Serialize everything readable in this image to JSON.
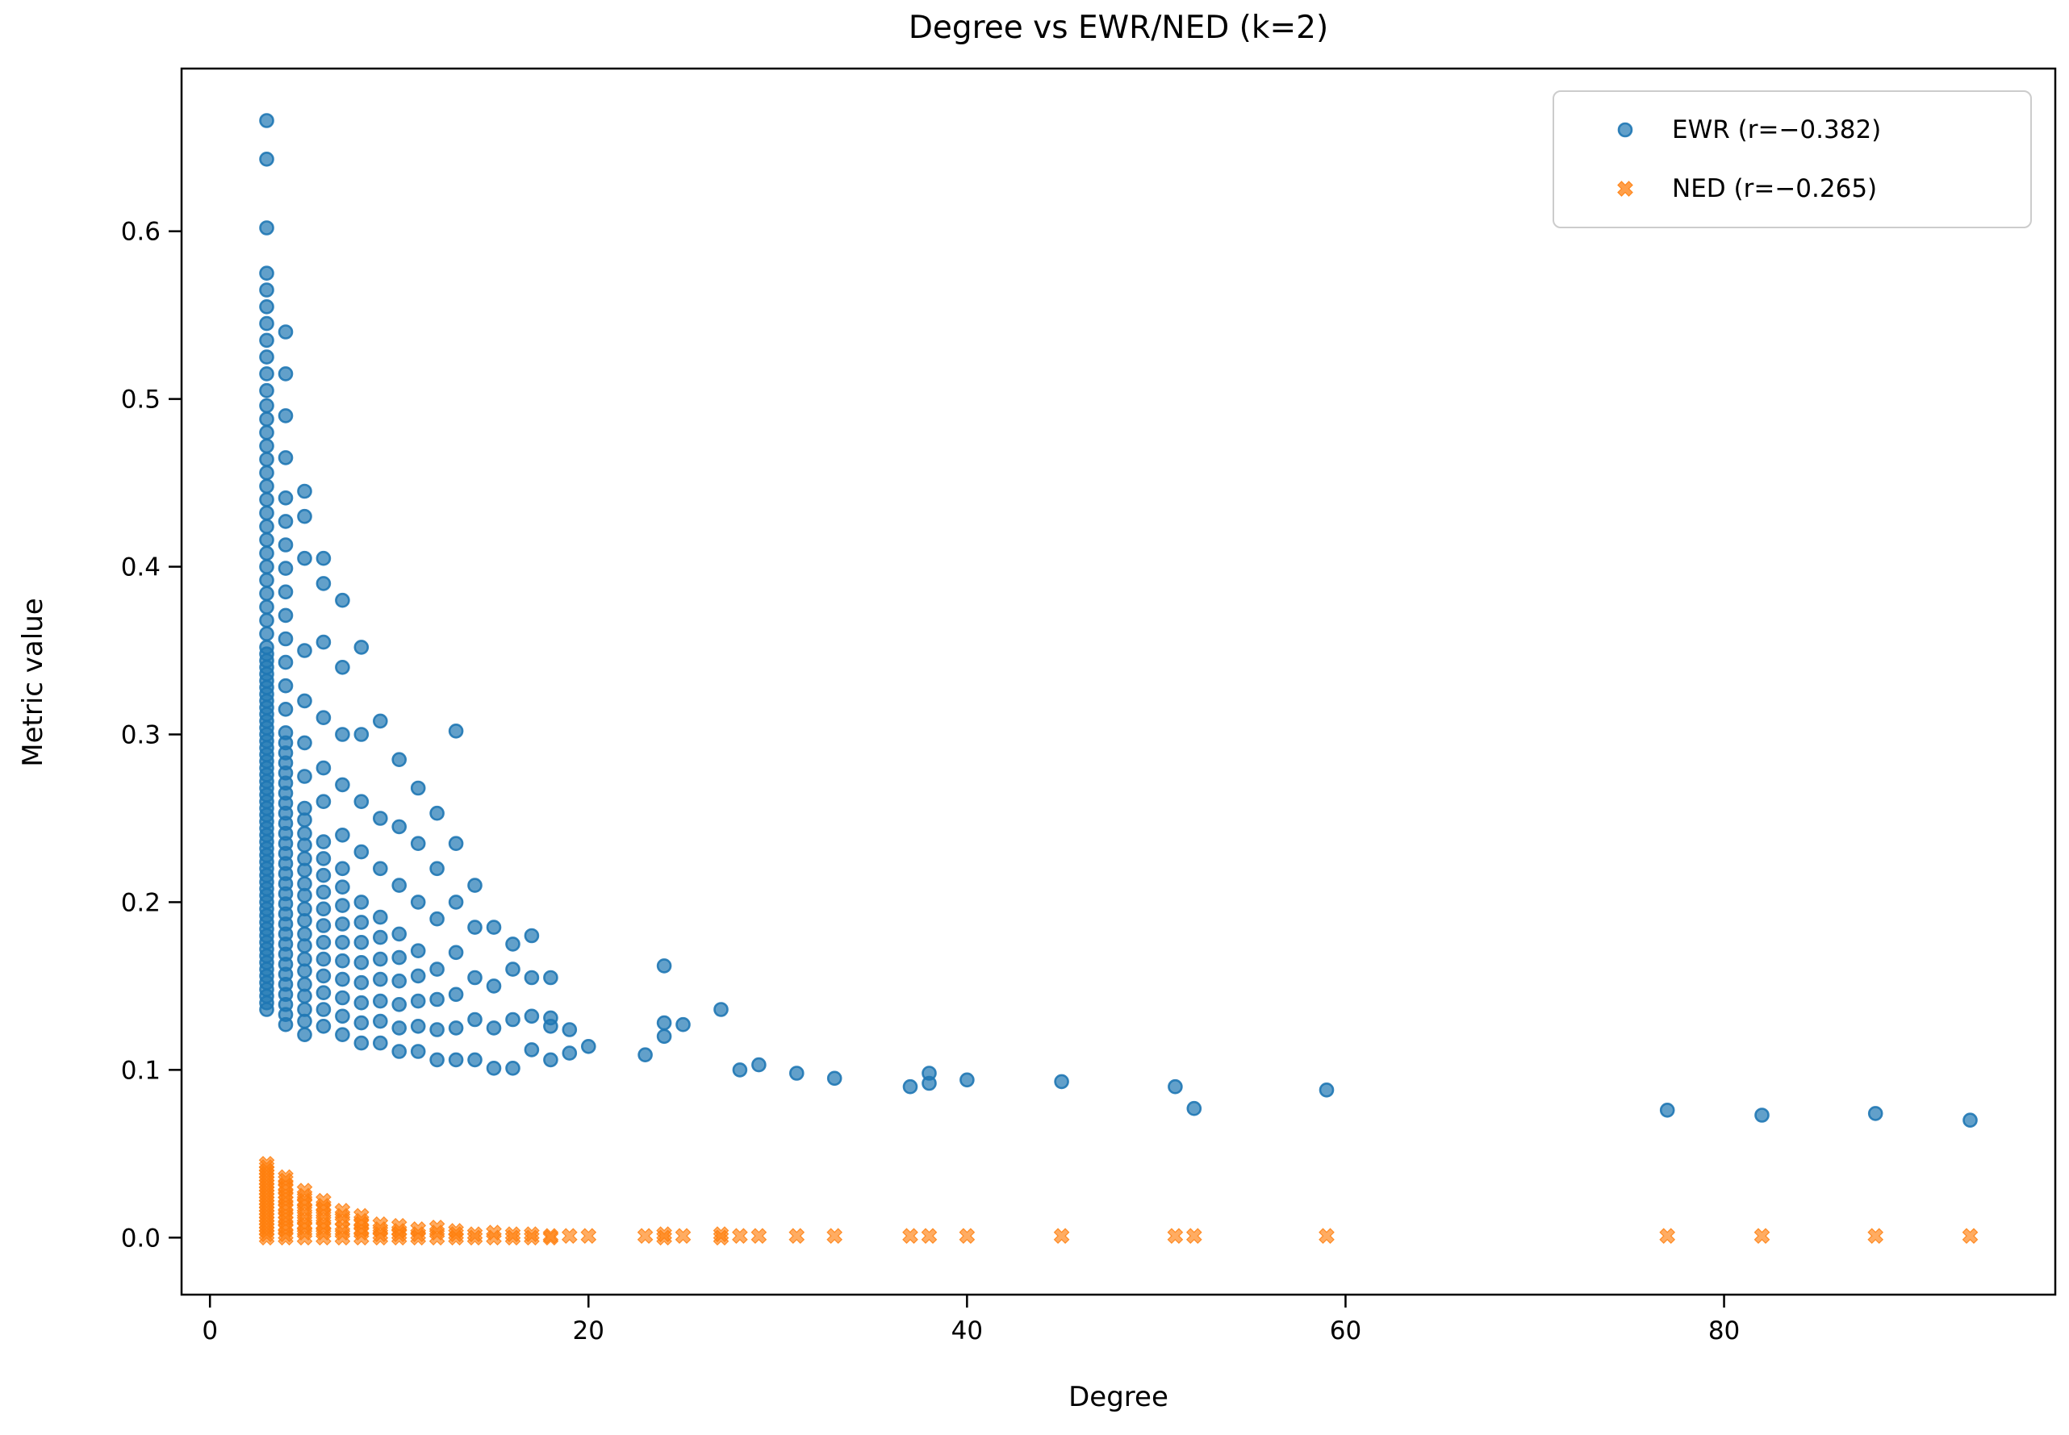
{
  "figure": {
    "title": "Degree vs EWR/NED (k=2)",
    "xlabel": "Degree",
    "ylabel": "Metric value"
  },
  "legend": {
    "items": [
      {
        "label": "EWR (r=−0.382)",
        "marker": "circle",
        "color": "#1f77b4"
      },
      {
        "label": "NED (r=−0.265)",
        "marker": "X",
        "color": "#ff7f0e"
      }
    ]
  },
  "chart_data": {
    "type": "scatter",
    "title": "Degree vs EWR/NED (k=2)",
    "xlabel": "Degree",
    "ylabel": "Metric value",
    "xlim": [
      -1.5,
      97.5
    ],
    "ylim": [
      -0.034,
      0.697
    ],
    "xticks": [
      0,
      20,
      40,
      60,
      80
    ],
    "yticks": [
      0.0,
      0.1,
      0.2,
      0.3,
      0.4,
      0.5,
      0.6
    ],
    "grid": false,
    "legend_position": "upper right",
    "series": [
      {
        "name": "EWR (r=−0.382)",
        "marker": "circle",
        "color": "#1f77b4",
        "alpha": 0.7,
        "columns": [
          {
            "x": 3,
            "ys": [
              0.136,
              0.14,
              0.144,
              0.148,
              0.152,
              0.156,
              0.16,
              0.164,
              0.168,
              0.172,
              0.176,
              0.18,
              0.184,
              0.188,
              0.192,
              0.196,
              0.2,
              0.204,
              0.208,
              0.212,
              0.216,
              0.22,
              0.224,
              0.228,
              0.232,
              0.236,
              0.24,
              0.244,
              0.248,
              0.252,
              0.256,
              0.26,
              0.264,
              0.268,
              0.272,
              0.276,
              0.28,
              0.284,
              0.288,
              0.292,
              0.296,
              0.3,
              0.304,
              0.308,
              0.312,
              0.316,
              0.32,
              0.324,
              0.328,
              0.332,
              0.336,
              0.34,
              0.344,
              0.348,
              0.352,
              0.36,
              0.368,
              0.376,
              0.384,
              0.392,
              0.4,
              0.408,
              0.416,
              0.424,
              0.432,
              0.44,
              0.448,
              0.456,
              0.464,
              0.472,
              0.48,
              0.488,
              0.496,
              0.505,
              0.515,
              0.525,
              0.535,
              0.545,
              0.555,
              0.565,
              0.575,
              0.602,
              0.643,
              0.666
            ]
          },
          {
            "x": 4,
            "ys": [
              0.127,
              0.133,
              0.139,
              0.145,
              0.151,
              0.157,
              0.163,
              0.169,
              0.175,
              0.181,
              0.187,
              0.193,
              0.199,
              0.205,
              0.211,
              0.217,
              0.223,
              0.229,
              0.235,
              0.241,
              0.247,
              0.253,
              0.259,
              0.265,
              0.271,
              0.277,
              0.283,
              0.289,
              0.295,
              0.301,
              0.315,
              0.329,
              0.343,
              0.357,
              0.371,
              0.385,
              0.399,
              0.413,
              0.427,
              0.441,
              0.465,
              0.49,
              0.515,
              0.54
            ]
          },
          {
            "x": 5,
            "ys": [
              0.121,
              0.129,
              0.136,
              0.144,
              0.151,
              0.159,
              0.166,
              0.174,
              0.181,
              0.189,
              0.196,
              0.204,
              0.211,
              0.219,
              0.226,
              0.234,
              0.241,
              0.249,
              0.256,
              0.275,
              0.295,
              0.32,
              0.35,
              0.405,
              0.43,
              0.445
            ]
          },
          {
            "x": 6,
            "ys": [
              0.126,
              0.136,
              0.146,
              0.156,
              0.166,
              0.176,
              0.186,
              0.196,
              0.206,
              0.216,
              0.226,
              0.236,
              0.26,
              0.28,
              0.31,
              0.355,
              0.39,
              0.405
            ]
          },
          {
            "x": 7,
            "ys": [
              0.121,
              0.132,
              0.143,
              0.154,
              0.165,
              0.176,
              0.187,
              0.198,
              0.209,
              0.22,
              0.24,
              0.27,
              0.3,
              0.34,
              0.38
            ]
          },
          {
            "x": 8,
            "ys": [
              0.116,
              0.128,
              0.14,
              0.152,
              0.164,
              0.176,
              0.188,
              0.2,
              0.23,
              0.26,
              0.3,
              0.352
            ]
          },
          {
            "x": 9,
            "ys": [
              0.116,
              0.129,
              0.141,
              0.154,
              0.166,
              0.179,
              0.191,
              0.22,
              0.25,
              0.308
            ]
          },
          {
            "x": 10,
            "ys": [
              0.111,
              0.125,
              0.139,
              0.153,
              0.167,
              0.181,
              0.21,
              0.245,
              0.285
            ]
          },
          {
            "x": 11,
            "ys": [
              0.111,
              0.126,
              0.141,
              0.156,
              0.171,
              0.2,
              0.235,
              0.268
            ]
          },
          {
            "x": 12,
            "ys": [
              0.106,
              0.124,
              0.142,
              0.16,
              0.19,
              0.22,
              0.253
            ]
          },
          {
            "x": 13,
            "ys": [
              0.106,
              0.125,
              0.145,
              0.17,
              0.2,
              0.235,
              0.302
            ]
          },
          {
            "x": 14,
            "ys": [
              0.106,
              0.13,
              0.155,
              0.185,
              0.21
            ]
          },
          {
            "x": 15,
            "ys": [
              0.101,
              0.125,
              0.15,
              0.185
            ]
          },
          {
            "x": 16,
            "ys": [
              0.101,
              0.13,
              0.16,
              0.175
            ]
          },
          {
            "x": 17,
            "ys": [
              0.112,
              0.132,
              0.155,
              0.18
            ]
          },
          {
            "x": 18,
            "ys": [
              0.106,
              0.126,
              0.131,
              0.155
            ]
          },
          {
            "x": 19,
            "ys": [
              0.11,
              0.124
            ]
          },
          {
            "x": 20,
            "ys": [
              0.114
            ]
          }
        ],
        "points": [
          [
            23,
            0.109
          ],
          [
            24,
            0.12
          ],
          [
            24,
            0.128
          ],
          [
            24,
            0.162
          ],
          [
            25,
            0.127
          ],
          [
            27,
            0.136
          ],
          [
            28,
            0.1
          ],
          [
            29,
            0.103
          ],
          [
            31,
            0.098
          ],
          [
            33,
            0.095
          ],
          [
            37,
            0.09
          ],
          [
            38,
            0.098
          ],
          [
            38,
            0.092
          ],
          [
            40,
            0.094
          ],
          [
            45,
            0.093
          ],
          [
            51,
            0.09
          ],
          [
            52,
            0.077
          ],
          [
            59,
            0.088
          ],
          [
            77,
            0.076
          ],
          [
            82,
            0.073
          ],
          [
            88,
            0.074
          ],
          [
            93,
            0.07
          ]
        ]
      },
      {
        "name": "NED (r=−0.265)",
        "marker": "X",
        "color": "#ff7f0e",
        "alpha": 0.65,
        "columns": [
          {
            "x": 3,
            "ys": [
              0,
              0.002,
              0.004,
              0.006,
              0.008,
              0.01,
              0.012,
              0.014,
              0.016,
              0.018,
              0.02,
              0.022,
              0.024,
              0.026,
              0.028,
              0.03,
              0.032,
              0.034,
              0.036,
              0.038,
              0.04,
              0.042,
              0.044
            ]
          },
          {
            "x": 4,
            "ys": [
              0,
              0.002,
              0.005,
              0.007,
              0.01,
              0.012,
              0.014,
              0.017,
              0.019,
              0.022,
              0.024,
              0.026,
              0.029,
              0.031,
              0.034,
              0.036
            ]
          },
          {
            "x": 5,
            "ys": [
              0,
              0.003,
              0.006,
              0.008,
              0.011,
              0.014,
              0.017,
              0.02,
              0.022,
              0.025,
              0.028
            ]
          },
          {
            "x": 6,
            "ys": [
              0,
              0.003,
              0.006,
              0.008,
              0.011,
              0.014,
              0.017,
              0.019,
              0.022
            ]
          },
          {
            "x": 7,
            "ys": [
              0,
              0.003,
              0.006,
              0.01,
              0.013,
              0.016
            ]
          },
          {
            "x": 8,
            "ys": [
              0,
              0.003,
              0.005,
              0.008,
              0.01,
              0.013
            ]
          },
          {
            "x": 9,
            "ys": [
              0,
              0.002,
              0.005,
              0.008
            ]
          },
          {
            "x": 10,
            "ys": [
              0,
              0.002,
              0.004,
              0.007
            ]
          },
          {
            "x": 11,
            "ys": [
              0,
              0.002,
              0.005
            ]
          },
          {
            "x": 12,
            "ys": [
              0,
              0.003,
              0.006
            ]
          },
          {
            "x": 13,
            "ys": [
              0,
              0.002,
              0.004
            ]
          },
          {
            "x": 14,
            "ys": [
              0,
              0.002
            ]
          },
          {
            "x": 15,
            "ys": [
              0,
              0.003
            ]
          },
          {
            "x": 16,
            "ys": [
              0,
              0.002
            ]
          },
          {
            "x": 17,
            "ys": [
              0,
              0.002
            ]
          },
          {
            "x": 18,
            "ys": [
              0,
              0.001
            ]
          },
          {
            "x": 19,
            "ys": [
              0.001
            ]
          },
          {
            "x": 20,
            "ys": [
              0.001
            ]
          }
        ],
        "points": [
          [
            23,
            0.001
          ],
          [
            24,
            0
          ],
          [
            24,
            0.002
          ],
          [
            25,
            0.001
          ],
          [
            27,
            0
          ],
          [
            27,
            0.002
          ],
          [
            28,
            0.001
          ],
          [
            29,
            0.001
          ],
          [
            31,
            0.001
          ],
          [
            33,
            0.001
          ],
          [
            37,
            0.001
          ],
          [
            38,
            0.001
          ],
          [
            40,
            0.001
          ],
          [
            45,
            0.001
          ],
          [
            51,
            0.001
          ],
          [
            52,
            0.001
          ],
          [
            59,
            0.001
          ],
          [
            77,
            0.001
          ],
          [
            82,
            0.001
          ],
          [
            88,
            0.001
          ],
          [
            93,
            0.001
          ]
        ]
      }
    ]
  }
}
